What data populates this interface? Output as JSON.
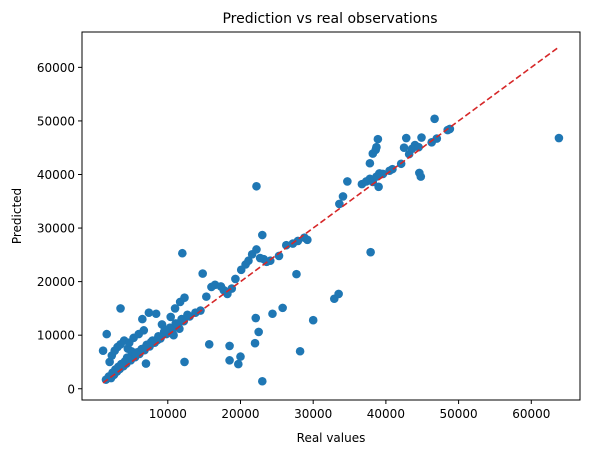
{
  "chart_data": {
    "type": "scatter",
    "title": "Prediction vs real observations",
    "xlabel": "Real values",
    "ylabel": "Predicted",
    "xlim": [
      -1800,
      66700
    ],
    "ylim": [
      -2100,
      66600
    ],
    "xticks": [
      {
        "value": 10000,
        "label": "10000"
      },
      {
        "value": 20000,
        "label": "20000"
      },
      {
        "value": 30000,
        "label": "30000"
      },
      {
        "value": 40000,
        "label": "40000"
      },
      {
        "value": 50000,
        "label": "50000"
      },
      {
        "value": 60000,
        "label": "60000"
      }
    ],
    "yticks": [
      {
        "value": 0,
        "label": "0"
      },
      {
        "value": 10000,
        "label": "10000"
      },
      {
        "value": 20000,
        "label": "20000"
      },
      {
        "value": 30000,
        "label": "30000"
      },
      {
        "value": 40000,
        "label": "40000"
      },
      {
        "value": 50000,
        "label": "50000"
      },
      {
        "value": 60000,
        "label": "60000"
      }
    ],
    "grid": false,
    "colors": {
      "points": "#1f77b4",
      "reference_line": "#d62728"
    },
    "reference_line": {
      "style": "dashed",
      "x": [
        1100,
        63800
      ],
      "y": [
        1100,
        63800
      ]
    },
    "points": [
      [
        1100,
        7100
      ],
      [
        1600,
        10200
      ],
      [
        3500,
        15000
      ],
      [
        2200,
        2000
      ],
      [
        2600,
        2600
      ],
      [
        3000,
        3200
      ],
      [
        3400,
        3700
      ],
      [
        3800,
        4300
      ],
      [
        4300,
        4700
      ],
      [
        4900,
        5300
      ],
      [
        5500,
        5900
      ],
      [
        6100,
        6500
      ],
      [
        6800,
        7200
      ],
      [
        7500,
        7900
      ],
      [
        8200,
        8600
      ],
      [
        9000,
        9400
      ],
      [
        9800,
        10200
      ],
      [
        10600,
        11000
      ],
      [
        11400,
        11900
      ],
      [
        12200,
        12600
      ],
      [
        13000,
        13500
      ],
      [
        13800,
        14200
      ],
      [
        14500,
        14600
      ],
      [
        1500,
        1700
      ],
      [
        1900,
        2300
      ],
      [
        2400,
        3000
      ],
      [
        2800,
        3600
      ],
      [
        3200,
        4100
      ],
      [
        3600,
        4600
      ],
      [
        4100,
        5100
      ],
      [
        4600,
        5600
      ],
      [
        5200,
        6200
      ],
      [
        5800,
        6800
      ],
      [
        6400,
        7400
      ],
      [
        7100,
        8200
      ],
      [
        7900,
        9000
      ],
      [
        8700,
        9800
      ],
      [
        9500,
        10600
      ],
      [
        10300,
        11400
      ],
      [
        11100,
        12200
      ],
      [
        11900,
        13000
      ],
      [
        12700,
        13800
      ],
      [
        2000,
        5000
      ],
      [
        2300,
        6200
      ],
      [
        2700,
        7100
      ],
      [
        3100,
        7800
      ],
      [
        3500,
        8300
      ],
      [
        4000,
        9000
      ],
      [
        4500,
        7500
      ],
      [
        5000,
        7000
      ],
      [
        6500,
        13000
      ],
      [
        7400,
        14200
      ],
      [
        8400,
        14000
      ],
      [
        9200,
        12000
      ],
      [
        10400,
        13400
      ],
      [
        11000,
        15000
      ],
      [
        11700,
        16200
      ],
      [
        12300,
        17000
      ],
      [
        10800,
        10000
      ],
      [
        11600,
        11200
      ],
      [
        3900,
        4200
      ],
      [
        4400,
        5800
      ],
      [
        5600,
        6600
      ],
      [
        6900,
        7700
      ],
      [
        7700,
        8700
      ],
      [
        8600,
        9100
      ],
      [
        9600,
        11000
      ],
      [
        4700,
        8600
      ],
      [
        5300,
        9500
      ],
      [
        6000,
        10200
      ],
      [
        6700,
        10900
      ],
      [
        12000,
        25300
      ],
      [
        14800,
        21500
      ],
      [
        15300,
        17200
      ],
      [
        16000,
        19000
      ],
      [
        16500,
        19400
      ],
      [
        17300,
        19100
      ],
      [
        17700,
        18400
      ],
      [
        18200,
        17700
      ],
      [
        18800,
        18700
      ],
      [
        19300,
        20500
      ],
      [
        20100,
        22200
      ],
      [
        20700,
        23200
      ],
      [
        21100,
        23900
      ],
      [
        21600,
        25100
      ],
      [
        22200,
        26000
      ],
      [
        22700,
        24400
      ],
      [
        23200,
        24200
      ],
      [
        23600,
        23700
      ],
      [
        24100,
        23900
      ],
      [
        25300,
        24800
      ],
      [
        26300,
        26800
      ],
      [
        27200,
        27100
      ],
      [
        27900,
        27600
      ],
      [
        28800,
        28200
      ],
      [
        29200,
        27800
      ],
      [
        22200,
        37800
      ],
      [
        23000,
        28700
      ],
      [
        27700,
        21400
      ],
      [
        25800,
        15100
      ],
      [
        24400,
        14000
      ],
      [
        22100,
        13200
      ],
      [
        22500,
        10600
      ],
      [
        22000,
        8500
      ],
      [
        18500,
        5300
      ],
      [
        19700,
        4600
      ],
      [
        20000,
        6000
      ],
      [
        15700,
        8300
      ],
      [
        18500,
        8000
      ],
      [
        12300,
        5000
      ],
      [
        7000,
        4700
      ],
      [
        23000,
        1400
      ],
      [
        28200,
        7000
      ],
      [
        30000,
        12800
      ],
      [
        32900,
        16800
      ],
      [
        33500,
        17700
      ],
      [
        37900,
        25500
      ],
      [
        33600,
        34500
      ],
      [
        34100,
        35900
      ],
      [
        34700,
        38700
      ],
      [
        36700,
        38200
      ],
      [
        37300,
        38700
      ],
      [
        37800,
        39200
      ],
      [
        38200,
        38600
      ],
      [
        38700,
        39600
      ],
      [
        39100,
        40200
      ],
      [
        39600,
        40100
      ],
      [
        37800,
        42100
      ],
      [
        38200,
        43900
      ],
      [
        38600,
        44600
      ],
      [
        38900,
        46600
      ],
      [
        38700,
        45100
      ],
      [
        40900,
        41000
      ],
      [
        42100,
        42000
      ],
      [
        42500,
        45000
      ],
      [
        43200,
        43800
      ],
      [
        42800,
        46800
      ],
      [
        43600,
        44800
      ],
      [
        44000,
        45500
      ],
      [
        44500,
        45100
      ],
      [
        44900,
        46900
      ],
      [
        44600,
        40300
      ],
      [
        44800,
        39600
      ],
      [
        46300,
        46000
      ],
      [
        46700,
        50400
      ],
      [
        47000,
        46700
      ],
      [
        48500,
        48300
      ],
      [
        48800,
        48500
      ],
      [
        63800,
        46800
      ],
      [
        39000,
        37700
      ],
      [
        40500,
        40700
      ]
    ]
  }
}
